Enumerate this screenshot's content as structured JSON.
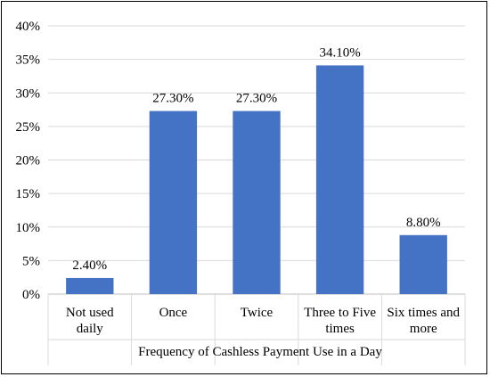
{
  "chart_data": {
    "type": "bar",
    "categories": [
      [
        "Not used",
        "daily"
      ],
      [
        "Once"
      ],
      [
        "Twice"
      ],
      [
        "Three to Five",
        "times"
      ],
      [
        "Six times and",
        "more"
      ]
    ],
    "values": [
      2.4,
      27.3,
      27.3,
      34.1,
      8.8
    ],
    "data_labels": [
      "2.40%",
      "27.30%",
      "27.30%",
      "34.10%",
      "8.80%"
    ],
    "title": "",
    "xlabel": "Frequency of Cashless Payment Use in a Day",
    "ylabel": "",
    "ylim": [
      0,
      40
    ],
    "yticks": [
      0,
      5,
      10,
      15,
      20,
      25,
      30,
      35,
      40
    ],
    "ytick_labels": [
      "0%",
      "5%",
      "10%",
      "15%",
      "20%",
      "25%",
      "30%",
      "35%",
      "40%"
    ],
    "grid": true,
    "legend": "none",
    "bar_color": "#4472C4",
    "grid_color": "#D9D9D9"
  }
}
